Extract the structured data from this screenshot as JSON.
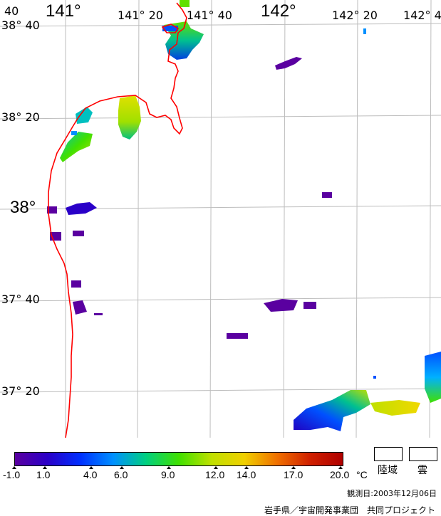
{
  "map": {
    "longitude_labels": [
      "141°",
      "141° 20",
      "141° 40",
      "142°",
      "142° 20",
      "142° 4"
    ],
    "latitude_labels": [
      "38° 40",
      "38° 20",
      "38°",
      "37° 40",
      "37° 20"
    ],
    "corner_label": "40",
    "colors": {
      "grid": "#bdbdbd",
      "coastline": "#ff0000",
      "background": "#ffffff"
    }
  },
  "colorbar": {
    "tick_labels": [
      "-1.0",
      "1.0",
      "4.0",
      "6.0",
      "9.0",
      "12.0",
      "14.0",
      "17.0",
      "20.0"
    ],
    "unit": "°C",
    "gradient_colors": [
      "#5a00a0",
      "#2a00c8",
      "#0030ff",
      "#0090ff",
      "#00d080",
      "#40e000",
      "#c0e000",
      "#f0d000",
      "#f07000",
      "#d02000",
      "#b00000"
    ]
  },
  "legend": {
    "land_label": "陸域",
    "cloud_label": "雲"
  },
  "observation_date": "観測日:2003年12月06日",
  "credit": "岩手県／宇宙開発事業団　共同プロジェクト"
}
